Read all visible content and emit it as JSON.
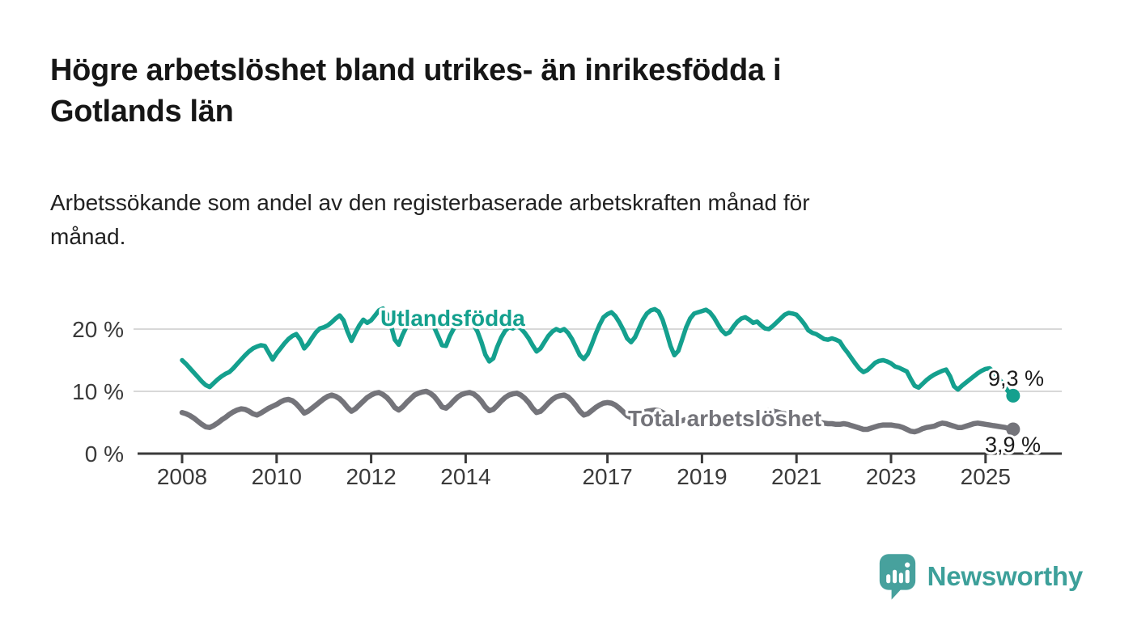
{
  "header": {
    "title": "Högre arbetslöshet bland utrikes- än inrikesfödda i\nGotlands län",
    "subtitle": "Arbetssökande som andel av den registerbaserade arbetskraften månad för\nmånad."
  },
  "chart_data": {
    "type": "line",
    "title": "Högre arbetslöshet bland utrikes- än inrikesfödda i Gotlands län",
    "subtitle": "Arbetssökande som andel av den registerbaserade arbetskraften månad för månad.",
    "x_start": {
      "year": 2008,
      "month": 1
    },
    "x_end": {
      "year": 2025,
      "month": 8
    },
    "x_unit": "month",
    "ylim": [
      0,
      24
    ],
    "grid": "horizontal",
    "legend_position": "inline-labels",
    "y_ticks": [
      {
        "value": 20,
        "label": "20 %"
      },
      {
        "value": 10,
        "label": "10 %"
      },
      {
        "value": 0,
        "label": "0 %"
      }
    ],
    "x_ticks": [
      {
        "year": 2008,
        "label": "2008"
      },
      {
        "year": 2010,
        "label": "2010"
      },
      {
        "year": 2012,
        "label": "2012"
      },
      {
        "year": 2014,
        "label": "2014"
      },
      {
        "year": 2017,
        "label": "2017"
      },
      {
        "year": 2019,
        "label": "2019"
      },
      {
        "year": 2021,
        "label": "2021"
      },
      {
        "year": 2023,
        "label": "2023"
      },
      {
        "year": 2025,
        "label": "2025"
      }
    ],
    "series": [
      {
        "name": "Utlandsfödda",
        "color": "#14a08e",
        "end_label": "9,3 %",
        "end_value": 9.3,
        "values": [
          15.0,
          14.4,
          13.7,
          13.0,
          12.3,
          11.6,
          11.0,
          10.7,
          11.3,
          11.9,
          12.4,
          12.8,
          13.1,
          13.7,
          14.4,
          15.1,
          15.8,
          16.4,
          16.9,
          17.2,
          17.4,
          17.3,
          16.2,
          15.1,
          16.1,
          16.9,
          17.7,
          18.4,
          18.9,
          19.2,
          18.3,
          16.9,
          17.6,
          18.6,
          19.5,
          20.1,
          20.3,
          20.6,
          21.1,
          21.7,
          22.2,
          21.4,
          19.6,
          18.1,
          19.4,
          20.6,
          21.5,
          21.0,
          21.4,
          22.2,
          23.0,
          23.3,
          22.4,
          20.7,
          18.3,
          17.5,
          19.1,
          20.4,
          21.2,
          20.8,
          21.0,
          21.6,
          21.9,
          21.2,
          20.3,
          18.9,
          17.4,
          17.3,
          18.9,
          20.1,
          20.9,
          21.1,
          20.9,
          21.3,
          20.7,
          19.6,
          17.9,
          15.9,
          14.8,
          15.3,
          17.1,
          18.6,
          19.7,
          20.3,
          20.1,
          20.5,
          20.1,
          19.4,
          18.5,
          17.4,
          16.4,
          16.9,
          17.9,
          18.9,
          19.6,
          20.0,
          19.7,
          20.0,
          19.4,
          18.4,
          17.1,
          15.8,
          15.2,
          16.0,
          17.5,
          19.2,
          20.7,
          21.9,
          22.4,
          22.7,
          22.1,
          21.1,
          19.9,
          18.5,
          17.9,
          18.7,
          20.1,
          21.5,
          22.5,
          23.0,
          23.2,
          22.8,
          21.5,
          19.5,
          17.3,
          15.8,
          16.5,
          18.4,
          20.3,
          21.7,
          22.5,
          22.7,
          22.9,
          23.1,
          22.7,
          21.9,
          20.8,
          19.8,
          19.2,
          19.5,
          20.4,
          21.2,
          21.7,
          21.9,
          21.5,
          21.0,
          21.2,
          20.6,
          20.1,
          20.0,
          20.5,
          21.1,
          21.7,
          22.3,
          22.6,
          22.5,
          22.3,
          21.6,
          20.8,
          19.8,
          19.4,
          19.2,
          18.8,
          18.4,
          18.3,
          18.5,
          18.3,
          18.0,
          17.0,
          16.2,
          15.3,
          14.4,
          13.6,
          13.1,
          13.4,
          14.0,
          14.6,
          14.9,
          15.0,
          14.8,
          14.5,
          14.0,
          13.8,
          13.5,
          13.2,
          12.0,
          10.9,
          10.6,
          11.2,
          11.8,
          12.3,
          12.7,
          13.0,
          13.3,
          13.5,
          12.4,
          10.8,
          10.3,
          10.9,
          11.4,
          11.9,
          12.4,
          12.9,
          13.3,
          13.6,
          13.7,
          13.2,
          12.4,
          11.5,
          10.6,
          9.8,
          9.3
        ]
      },
      {
        "name": "Total arbetslöshet",
        "color": "#74747a",
        "end_label": "3,9 %",
        "end_value": 3.9,
        "values": [
          6.6,
          6.4,
          6.1,
          5.7,
          5.2,
          4.7,
          4.3,
          4.2,
          4.5,
          4.9,
          5.4,
          5.8,
          6.3,
          6.7,
          7.0,
          7.2,
          7.1,
          6.8,
          6.4,
          6.2,
          6.5,
          6.9,
          7.3,
          7.6,
          7.9,
          8.3,
          8.6,
          8.7,
          8.5,
          8.0,
          7.3,
          6.5,
          6.8,
          7.3,
          7.8,
          8.3,
          8.8,
          9.2,
          9.4,
          9.2,
          8.8,
          8.2,
          7.4,
          6.8,
          7.2,
          7.8,
          8.4,
          9.0,
          9.4,
          9.7,
          9.8,
          9.5,
          9.0,
          8.3,
          7.4,
          7.0,
          7.5,
          8.2,
          8.8,
          9.4,
          9.7,
          9.9,
          10.0,
          9.7,
          9.2,
          8.4,
          7.5,
          7.3,
          7.8,
          8.5,
          9.1,
          9.5,
          9.7,
          9.8,
          9.6,
          9.1,
          8.4,
          7.5,
          6.9,
          7.1,
          7.7,
          8.4,
          9.0,
          9.4,
          9.6,
          9.7,
          9.4,
          8.9,
          8.2,
          7.3,
          6.6,
          6.8,
          7.4,
          8.1,
          8.7,
          9.1,
          9.3,
          9.4,
          9.1,
          8.5,
          7.7,
          6.8,
          6.2,
          6.4,
          6.9,
          7.4,
          7.8,
          8.1,
          8.2,
          8.1,
          7.8,
          7.3,
          6.7,
          6.1,
          5.8,
          6.0,
          6.3,
          6.6,
          6.8,
          6.9,
          7.0,
          6.9,
          6.6,
          6.2,
          5.7,
          5.3,
          5.1,
          5.3,
          5.5,
          5.7,
          5.9,
          6.0,
          6.1,
          6.0,
          5.8,
          5.5,
          5.2,
          5.0,
          4.9,
          5.0,
          5.2,
          5.4,
          5.6,
          5.8,
          6.0,
          6.1,
          6.3,
          6.6,
          6.8,
          6.9,
          6.8,
          6.7,
          6.5,
          6.4,
          6.2,
          6.1,
          6.0,
          5.9,
          5.7,
          5.5,
          5.3,
          5.2,
          5.0,
          4.9,
          4.8,
          4.8,
          4.7,
          4.7,
          4.8,
          4.7,
          4.5,
          4.3,
          4.1,
          3.9,
          3.9,
          4.1,
          4.3,
          4.5,
          4.6,
          4.6,
          4.6,
          4.5,
          4.4,
          4.2,
          3.9,
          3.6,
          3.5,
          3.7,
          4.0,
          4.2,
          4.3,
          4.4,
          4.7,
          4.9,
          4.8,
          4.6,
          4.4,
          4.2,
          4.2,
          4.4,
          4.6,
          4.8,
          4.9,
          4.8,
          4.7,
          4.6,
          4.5,
          4.4,
          4.3,
          4.2,
          4.0,
          3.9
        ]
      }
    ],
    "colors": {
      "grid": "#d8d8d8",
      "axis": "#3a3a3a",
      "tick_text": "#3a3a3a",
      "end_value_text": "#1a1a1a"
    }
  },
  "branding": {
    "logo_text": "Newsworthy",
    "logo_icon": "speech-bubble-bar-chart",
    "logo_color": "#47a19d"
  }
}
